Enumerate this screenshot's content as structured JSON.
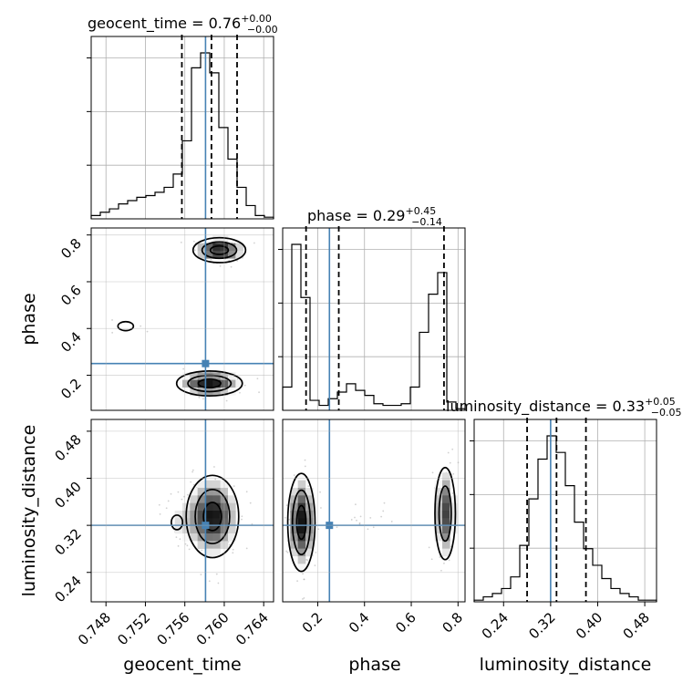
{
  "chart_data": {
    "type": "corner",
    "parameters": [
      "geocent_time",
      "phase",
      "luminosity_distance"
    ],
    "axes_labels": {
      "x": [
        "geocent_time",
        "phase",
        "luminosity_distance"
      ],
      "y": [
        "",
        "phase",
        "luminosity_distance"
      ]
    },
    "titles": [
      {
        "param": "geocent_time",
        "prefix": "geocent_time = 0.76",
        "sup": "+0.00",
        "sub": "−0.00"
      },
      {
        "param": "phase",
        "prefix": "phase = 0.29",
        "sup": "+0.45",
        "sub": "−0.14"
      },
      {
        "param": "luminosity_distance",
        "prefix": "luminosity_distance = 0.33",
        "sup": "+0.05",
        "sub": "−0.05"
      }
    ],
    "ranges": {
      "geocent_time": [
        0.7465,
        0.765
      ],
      "phase": [
        0.05,
        0.83
      ],
      "luminosity_distance": [
        0.19,
        0.5
      ]
    },
    "ticks": {
      "geocent_time": [
        "0.748",
        "0.752",
        "0.756",
        "0.760",
        "0.764"
      ],
      "phase": [
        "0.2",
        "0.4",
        "0.6",
        "0.8"
      ],
      "luminosity_distance": [
        "0.24",
        "0.32",
        "0.40",
        "0.48"
      ]
    },
    "tick_values": {
      "geocent_time": [
        0.748,
        0.752,
        0.756,
        0.76,
        0.764
      ],
      "phase": [
        0.2,
        0.4,
        0.6,
        0.8
      ],
      "luminosity_distance": [
        0.24,
        0.32,
        0.4,
        0.48
      ]
    },
    "truths": {
      "geocent_time": 0.7581,
      "phase": 0.25,
      "luminosity_distance": 0.32
    },
    "quantiles": {
      "geocent_time": [
        0.7557,
        0.7587,
        0.7613
      ],
      "phase": [
        0.15,
        0.29,
        0.74
      ],
      "luminosity_distance": [
        0.28,
        0.33,
        0.38
      ]
    },
    "histograms": {
      "geocent_time": [
        2,
        4,
        6,
        9,
        11,
        13,
        14,
        16,
        19,
        27,
        47,
        91,
        100,
        88,
        55,
        36,
        19,
        8,
        2,
        1
      ],
      "phase": [
        14,
        100,
        68,
        6,
        3,
        7,
        11,
        16,
        12,
        9,
        4,
        3,
        3,
        4,
        14,
        47,
        70,
        83,
        5,
        1
      ],
      "luminosity_distance": [
        1,
        3,
        5,
        8,
        15,
        34,
        62,
        86,
        100,
        90,
        70,
        48,
        32,
        22,
        14,
        8,
        5,
        3,
        1,
        1
      ]
    },
    "density_2d": [
      {
        "x": "geocent_time",
        "y": "phase",
        "modes": [
          {
            "cx": 0.7595,
            "cy": 0.735,
            "sx": 0.0016,
            "sy": 0.032,
            "w": 1.0
          },
          {
            "cx": 0.7585,
            "cy": 0.165,
            "sx": 0.002,
            "sy": 0.032,
            "w": 1.0
          },
          {
            "cx": 0.75,
            "cy": 0.41,
            "sx": 0.0013,
            "sy": 0.032,
            "w": 0.3
          }
        ]
      },
      {
        "x": "geocent_time",
        "y": "luminosity_distance",
        "modes": [
          {
            "cx": 0.7588,
            "cy": 0.335,
            "sx": 0.0016,
            "sy": 0.042,
            "w": 1.0
          },
          {
            "cx": 0.7552,
            "cy": 0.325,
            "sx": 0.0012,
            "sy": 0.026,
            "w": 0.28
          }
        ]
      },
      {
        "x": "phase",
        "y": "luminosity_distance",
        "modes": [
          {
            "cx": 0.13,
            "cy": 0.325,
            "sx": 0.035,
            "sy": 0.05,
            "w": 1.0
          },
          {
            "cx": 0.745,
            "cy": 0.34,
            "sx": 0.028,
            "sy": 0.05,
            "w": 0.85
          },
          {
            "cx": 0.4,
            "cy": 0.335,
            "sx": 0.06,
            "sy": 0.022,
            "w": 0.22
          }
        ]
      }
    ],
    "grid": true
  }
}
